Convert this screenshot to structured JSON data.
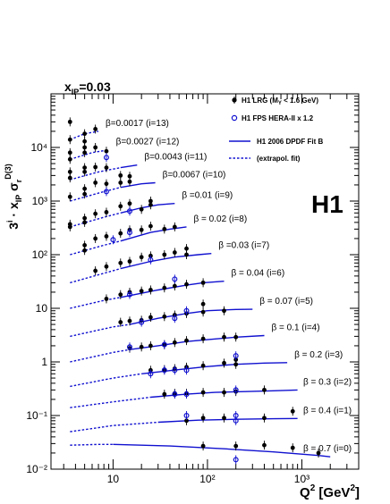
{
  "chart_data": {
    "type": "scatter",
    "title": "x_IP=0.03",
    "title_main": "x",
    "title_sub": "IP",
    "title_value": "=0.03",
    "ylabel_prefix": "3",
    "ylabel_sup_i": "i",
    "ylabel_dot_x": " · x",
    "ylabel_sub_ip": "IP",
    "ylabel_sigma": " σ",
    "ylabel_sub_r": "r",
    "ylabel_sup_d3": "D(3)",
    "xlabel_q": "Q",
    "xlabel_sup": "2",
    "xlabel_unit": " [GeV",
    "xlabel_unit_sup": "2",
    "xlabel_close": "]",
    "x_scale": "log",
    "y_scale": "log",
    "xlim": [
      2.2,
      4000
    ],
    "ylim": [
      0.01,
      100000
    ],
    "x_ticks": [
      {
        "v": 10,
        "label": "10"
      },
      {
        "v": 100,
        "label": "10²"
      },
      {
        "v": 1000,
        "label": "10³"
      }
    ],
    "y_ticks": [
      {
        "v": 0.01,
        "label": "10⁻²"
      },
      {
        "v": 0.1,
        "label": "10⁻¹"
      },
      {
        "v": 1,
        "label": "1"
      },
      {
        "v": 10,
        "label": "10"
      },
      {
        "v": 100,
        "label": "10²"
      },
      {
        "v": 1000,
        "label": "10³"
      },
      {
        "v": 10000,
        "label": "10⁴"
      }
    ],
    "experiment_label": "H1",
    "legend": {
      "placement": "top-right",
      "entries": [
        {
          "marker": "filled-circle",
          "text": "H1 LRG (M",
          "sub": "Y",
          "text2": " < 1.6 GeV)"
        },
        {
          "marker": "open-circle",
          "text": "H1 FPS HERA-II x 1.2"
        },
        {
          "marker": "solid-line",
          "text": "H1 2006 DPDF Fit B"
        },
        {
          "marker": "dashed-line",
          "text": "(extrapol. fit)"
        }
      ]
    },
    "series": [
      {
        "i": 13,
        "label": "β=0.0017 (i=13)",
        "lrg": [
          [
            3.5,
            30000
          ],
          [
            3.5,
            14000
          ],
          [
            5,
            18000
          ],
          [
            5,
            13000
          ],
          [
            6.5,
            22000
          ]
        ],
        "fps": [],
        "extrap": [
          [
            3.5,
            14000
          ],
          [
            5,
            18000
          ],
          [
            7,
            20000
          ]
        ],
        "fit": []
      },
      {
        "i": 12,
        "label": "β=0.0027 (i=12)",
        "lrg": [
          [
            3.5,
            8000
          ],
          [
            3.5,
            6000
          ],
          [
            5,
            10000
          ],
          [
            5,
            8000
          ],
          [
            6.5,
            10000
          ],
          [
            8.5,
            8500
          ]
        ],
        "fps": [
          [
            8.5,
            6500
          ]
        ],
        "extrap": [
          [
            3.5,
            6000
          ],
          [
            6,
            8000
          ],
          [
            9,
            9000
          ]
        ],
        "fit": []
      },
      {
        "i": 11,
        "label": "β=0.0043 (i=11)",
        "lrg": [
          [
            3.5,
            3500
          ],
          [
            3.5,
            2700
          ],
          [
            5,
            4200
          ],
          [
            5,
            3500
          ],
          [
            6.5,
            4300
          ],
          [
            8.5,
            4200
          ],
          [
            12,
            3000
          ]
        ],
        "fps": [],
        "extrap": [
          [
            3.5,
            2500
          ],
          [
            7,
            3500
          ],
          [
            12,
            4200
          ]
        ],
        "fit": [
          [
            12,
            4200
          ],
          [
            18,
            4700
          ]
        ]
      },
      {
        "i": 10,
        "label": "β=0.0067 (i=10)",
        "lrg": [
          [
            3.5,
            1200
          ],
          [
            5,
            1700
          ],
          [
            5,
            1350
          ],
          [
            6.5,
            2200
          ],
          [
            8.5,
            2100
          ],
          [
            12,
            2200
          ],
          [
            15,
            2900
          ],
          [
            15,
            2300
          ]
        ],
        "fps": [
          [
            8.5,
            1500
          ]
        ],
        "extrap": [
          [
            3.5,
            1000
          ],
          [
            8,
            1500
          ],
          [
            12,
            1800
          ]
        ],
        "fit": [
          [
            12,
            1800
          ],
          [
            20,
            2100
          ],
          [
            28,
            2200
          ]
        ]
      },
      {
        "i": 9,
        "label": "β =0.01 (i=9)",
        "lrg": [
          [
            3.5,
            370
          ],
          [
            3.5,
            330
          ],
          [
            5,
            480
          ],
          [
            5,
            400
          ],
          [
            6.5,
            580
          ],
          [
            8.5,
            620
          ],
          [
            12,
            800
          ],
          [
            15,
            900
          ],
          [
            20,
            700
          ],
          [
            25,
            1000
          ],
          [
            25,
            850
          ]
        ],
        "fps": [
          [
            15,
            650
          ]
        ],
        "extrap": [
          [
            3.5,
            330
          ],
          [
            8,
            500
          ],
          [
            12,
            600
          ]
        ],
        "fit": [
          [
            12,
            600
          ],
          [
            20,
            750
          ],
          [
            30,
            850
          ],
          [
            45,
            900
          ]
        ]
      },
      {
        "i": 8,
        "label": "β = 0.02 (i=8)",
        "lrg": [
          [
            5,
            150
          ],
          [
            5,
            120
          ],
          [
            6.5,
            200
          ],
          [
            8.5,
            220
          ],
          [
            12,
            250
          ],
          [
            15,
            290
          ],
          [
            20,
            290
          ],
          [
            25,
            340
          ],
          [
            35,
            300
          ],
          [
            45,
            330
          ]
        ],
        "fps": [
          [
            10,
            190
          ],
          [
            15,
            260
          ]
        ],
        "extrap": [
          [
            3.5,
            100
          ],
          [
            8,
            150
          ],
          [
            12,
            180
          ]
        ],
        "fit": [
          [
            12,
            180
          ],
          [
            25,
            260
          ],
          [
            40,
            300
          ],
          [
            60,
            330
          ]
        ]
      },
      {
        "i": 7,
        "label": "β =0.03 (i=7)",
        "lrg": [
          [
            6.5,
            50
          ],
          [
            8.5,
            60
          ],
          [
            12,
            70
          ],
          [
            15,
            75
          ],
          [
            20,
            90
          ],
          [
            25,
            95
          ],
          [
            35,
            100
          ],
          [
            45,
            110
          ],
          [
            60,
            130
          ],
          [
            60,
            100
          ]
        ],
        "fps": [
          [
            25,
            80
          ]
        ],
        "extrap": [
          [
            3.5,
            30
          ],
          [
            8,
            45
          ],
          [
            12,
            55
          ]
        ],
        "fit": [
          [
            12,
            55
          ],
          [
            25,
            75
          ],
          [
            45,
            90
          ],
          [
            80,
            100
          ],
          [
            110,
            105
          ]
        ]
      },
      {
        "i": 6,
        "label": "β = 0.04 (i=6)",
        "lrg": [
          [
            8.5,
            15
          ],
          [
            12,
            18
          ],
          [
            15,
            20
          ],
          [
            20,
            21
          ],
          [
            25,
            22
          ],
          [
            35,
            24
          ],
          [
            45,
            26
          ],
          [
            60,
            28
          ],
          [
            90,
            30
          ]
        ],
        "fps": [
          [
            15,
            18
          ],
          [
            45,
            35
          ]
        ],
        "extrap": [
          [
            3.5,
            10
          ],
          [
            8,
            14
          ],
          [
            12,
            16
          ]
        ],
        "fit": [
          [
            12,
            16
          ],
          [
            30,
            22
          ],
          [
            60,
            27
          ],
          [
            90,
            30
          ],
          [
            150,
            32
          ]
        ]
      },
      {
        "i": 5,
        "label": "β = 0.07 (i=5)",
        "lrg": [
          [
            12,
            5.5
          ],
          [
            15,
            5.8
          ],
          [
            20,
            6
          ],
          [
            25,
            6.8
          ],
          [
            35,
            7
          ],
          [
            45,
            7.5
          ],
          [
            60,
            8
          ],
          [
            90,
            8.5
          ],
          [
            90,
            12
          ],
          [
            150,
            9
          ]
        ],
        "fps": [
          [
            20,
            5.5
          ],
          [
            45,
            6.5
          ],
          [
            60,
            9
          ]
        ],
        "extrap": [
          [
            3.5,
            3
          ],
          [
            10,
            4.5
          ],
          [
            15,
            5
          ]
        ],
        "fit": [
          [
            15,
            5
          ],
          [
            30,
            6.5
          ],
          [
            60,
            8
          ],
          [
            100,
            9
          ],
          [
            200,
            9.5
          ],
          [
            300,
            9.6
          ]
        ]
      },
      {
        "i": 4,
        "label": "β = 0.1 (i=4)",
        "lrg": [
          [
            15,
            1.8
          ],
          [
            20,
            1.9
          ],
          [
            25,
            2
          ],
          [
            35,
            2.1
          ],
          [
            45,
            2.3
          ],
          [
            60,
            2.5
          ],
          [
            90,
            2.7
          ],
          [
            150,
            2.9
          ],
          [
            200,
            2.9
          ]
        ],
        "fps": [
          [
            15,
            1.9
          ],
          [
            35,
            2.1
          ]
        ],
        "extrap": [
          [
            3.5,
            1
          ],
          [
            10,
            1.5
          ],
          [
            15,
            1.7
          ]
        ],
        "fit": [
          [
            15,
            1.7
          ],
          [
            30,
            2
          ],
          [
            60,
            2.4
          ],
          [
            100,
            2.6
          ],
          [
            200,
            2.9
          ],
          [
            400,
            3.1
          ]
        ]
      },
      {
        "i": 3,
        "label": "β = 0.2 (i=3)",
        "lrg": [
          [
            25,
            0.7
          ],
          [
            35,
            0.72
          ],
          [
            45,
            0.75
          ],
          [
            60,
            0.8
          ],
          [
            90,
            0.85
          ],
          [
            150,
            0.95
          ],
          [
            200,
            0.9
          ],
          [
            200,
            1.1
          ]
        ],
        "fps": [
          [
            25,
            0.6
          ],
          [
            35,
            0.7
          ],
          [
            45,
            0.7
          ],
          [
            60,
            0.7
          ],
          [
            200,
            1.3
          ]
        ],
        "extrap": [
          [
            3.5,
            0.35
          ],
          [
            10,
            0.5
          ],
          [
            20,
            0.6
          ]
        ],
        "fit": [
          [
            20,
            0.6
          ],
          [
            50,
            0.72
          ],
          [
            100,
            0.82
          ],
          [
            200,
            0.9
          ],
          [
            400,
            0.95
          ],
          [
            700,
            0.97
          ]
        ]
      },
      {
        "i": 2,
        "label": "β = 0.3 (i=2)",
        "lrg": [
          [
            35,
            0.25
          ],
          [
            45,
            0.26
          ],
          [
            60,
            0.26
          ],
          [
            90,
            0.27
          ],
          [
            150,
            0.27
          ],
          [
            200,
            0.28
          ],
          [
            400,
            0.3
          ]
        ],
        "fps": [
          [
            45,
            0.25
          ],
          [
            60,
            0.25
          ],
          [
            200,
            0.3
          ]
        ],
        "extrap": [
          [
            3.5,
            0.14
          ],
          [
            10,
            0.18
          ],
          [
            25,
            0.22
          ]
        ],
        "fit": [
          [
            25,
            0.22
          ],
          [
            60,
            0.25
          ],
          [
            120,
            0.27
          ],
          [
            250,
            0.28
          ],
          [
            500,
            0.29
          ],
          [
            900,
            0.3
          ]
        ]
      },
      {
        "i": 1,
        "label": "β = 0.4 (i=1)",
        "lrg": [
          [
            60,
            0.08
          ],
          [
            90,
            0.09
          ],
          [
            150,
            0.09
          ],
          [
            400,
            0.09
          ],
          [
            800,
            0.12
          ]
        ],
        "fps": [
          [
            60,
            0.1
          ],
          [
            200,
            0.1
          ],
          [
            200,
            0.08
          ]
        ],
        "extrap": [
          [
            3.5,
            0.05
          ],
          [
            10,
            0.065
          ],
          [
            30,
            0.075
          ]
        ],
        "fit": [
          [
            30,
            0.075
          ],
          [
            80,
            0.082
          ],
          [
            200,
            0.085
          ],
          [
            500,
            0.087
          ],
          [
            900,
            0.088
          ]
        ]
      },
      {
        "i": 0,
        "label": "β = 0.7 (i=0)",
        "lrg": [
          [
            90,
            0.027
          ],
          [
            200,
            0.027
          ],
          [
            400,
            0.028
          ],
          [
            800,
            0.025
          ],
          [
            1500,
            0.02
          ]
        ],
        "fps": [
          [
            200,
            0.015
          ]
        ],
        "extrap": [
          [
            3.5,
            0.028
          ],
          [
            7,
            0.029
          ],
          [
            10,
            0.029
          ]
        ],
        "fit": [
          [
            10,
            0.029
          ],
          [
            40,
            0.027
          ],
          [
            150,
            0.024
          ],
          [
            500,
            0.021
          ],
          [
            1500,
            0.018
          ],
          [
            2000,
            0.017
          ]
        ]
      }
    ]
  }
}
